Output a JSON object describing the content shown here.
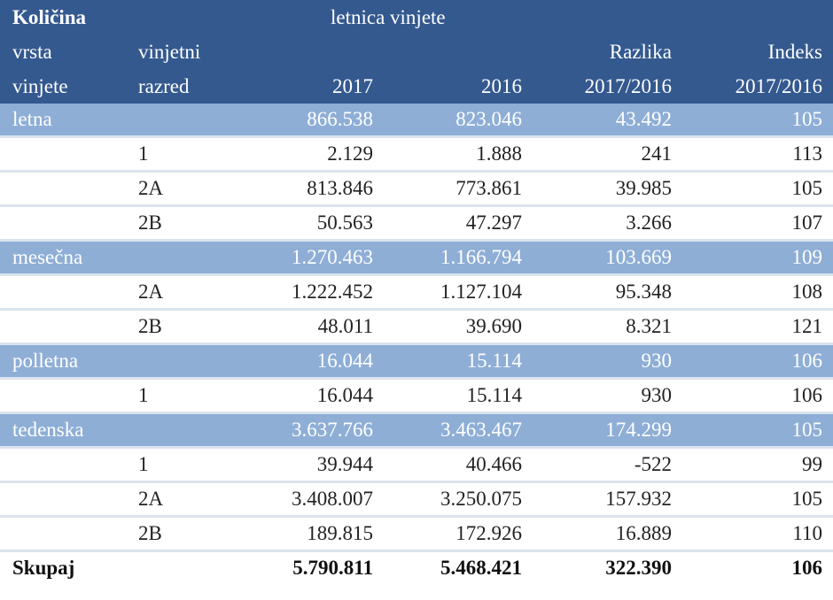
{
  "header": {
    "quantity_label": "Količina",
    "year_group_label": "letnica vinjete",
    "type_label_line1": "vrsta",
    "type_label_line2": "vinjete",
    "class_label_line1": "vinjetni",
    "class_label_line2": "razred",
    "col_2017": "2017",
    "col_2016": "2016",
    "diff_label_line1": "Razlika",
    "diff_label_line2": "2017/2016",
    "index_label_line1": "Indeks",
    "index_label_line2": "2017/2016"
  },
  "rows": [
    {
      "type": "letna",
      "class": "",
      "v2017": "866.538",
      "v2016": "823.046",
      "diff": "43.492",
      "index": "105",
      "kind": "group"
    },
    {
      "type": "",
      "class": "1",
      "v2017": "2.129",
      "v2016": "1.888",
      "diff": "241",
      "index": "113",
      "kind": "detail"
    },
    {
      "type": "",
      "class": "2A",
      "v2017": "813.846",
      "v2016": "773.861",
      "diff": "39.985",
      "index": "105",
      "kind": "detail"
    },
    {
      "type": "",
      "class": "2B",
      "v2017": "50.563",
      "v2016": "47.297",
      "diff": "3.266",
      "index": "107",
      "kind": "detail"
    },
    {
      "type": "mesečna",
      "class": "",
      "v2017": "1.270.463",
      "v2016": "1.166.794",
      "diff": "103.669",
      "index": "109",
      "kind": "group"
    },
    {
      "type": "",
      "class": "2A",
      "v2017": "1.222.452",
      "v2016": "1.127.104",
      "diff": "95.348",
      "index": "108",
      "kind": "detail"
    },
    {
      "type": "",
      "class": "2B",
      "v2017": "48.011",
      "v2016": "39.690",
      "diff": "8.321",
      "index": "121",
      "kind": "detail"
    },
    {
      "type": "polletna",
      "class": "",
      "v2017": "16.044",
      "v2016": "15.114",
      "diff": "930",
      "index": "106",
      "kind": "group"
    },
    {
      "type": "",
      "class": "1",
      "v2017": "16.044",
      "v2016": "15.114",
      "diff": "930",
      "index": "106",
      "kind": "detail"
    },
    {
      "type": "tedenska",
      "class": "",
      "v2017": "3.637.766",
      "v2016": "3.463.467",
      "diff": "174.299",
      "index": "105",
      "kind": "group"
    },
    {
      "type": "",
      "class": "1",
      "v2017": "39.944",
      "v2016": "40.466",
      "diff": "-522",
      "index": "99",
      "kind": "detail"
    },
    {
      "type": "",
      "class": "2A",
      "v2017": "3.408.007",
      "v2016": "3.250.075",
      "diff": "157.932",
      "index": "105",
      "kind": "detail"
    },
    {
      "type": "",
      "class": "2B",
      "v2017": "189.815",
      "v2016": "172.926",
      "diff": "16.889",
      "index": "110",
      "kind": "detail"
    },
    {
      "type": "Skupaj",
      "class": "",
      "v2017": "5.790.811",
      "v2016": "5.468.421",
      "diff": "322.390",
      "index": "106",
      "kind": "total"
    }
  ],
  "colors": {
    "header_bg": "#34598f",
    "group_row_bg": "#8eaed6",
    "row_divider": "#dbe3ee"
  },
  "chart_data": {
    "type": "table",
    "title": "Količina — letnica vinjete",
    "columns": [
      "vrsta vinjete",
      "vinjetni razred",
      "2017",
      "2016",
      "Razlika 2017/2016",
      "Indeks 2017/2016"
    ],
    "rows": [
      [
        "letna",
        "",
        866538,
        823046,
        43492,
        105
      ],
      [
        "letna",
        "1",
        2129,
        1888,
        241,
        113
      ],
      [
        "letna",
        "2A",
        813846,
        773861,
        39985,
        105
      ],
      [
        "letna",
        "2B",
        50563,
        47297,
        3266,
        107
      ],
      [
        "mesečna",
        "",
        1270463,
        1166794,
        103669,
        109
      ],
      [
        "mesečna",
        "2A",
        1222452,
        1127104,
        95348,
        108
      ],
      [
        "mesečna",
        "2B",
        48011,
        39690,
        8321,
        121
      ],
      [
        "polletna",
        "",
        16044,
        15114,
        930,
        106
      ],
      [
        "polletna",
        "1",
        16044,
        15114,
        930,
        106
      ],
      [
        "tedenska",
        "",
        3637766,
        3463467,
        174299,
        105
      ],
      [
        "tedenska",
        "1",
        39944,
        40466,
        -522,
        99
      ],
      [
        "tedenska",
        "2A",
        3408007,
        3250075,
        157932,
        105
      ],
      [
        "tedenska",
        "2B",
        189815,
        172926,
        16889,
        110
      ],
      [
        "Skupaj",
        "",
        5790811,
        5468421,
        322390,
        106
      ]
    ]
  }
}
